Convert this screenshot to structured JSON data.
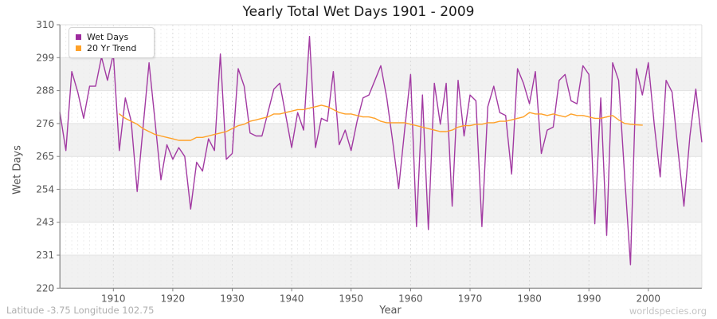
{
  "title": "Yearly Total Wet Days 1901 - 2009",
  "axes": {
    "x_label": "Year",
    "y_label": "Wet Days",
    "x_ticks": [
      1910,
      1920,
      1930,
      1940,
      1950,
      1960,
      1970,
      1980,
      1990,
      2000
    ],
    "y_ticks": [
      310,
      299,
      288,
      276,
      265,
      254,
      243,
      231,
      220
    ]
  },
  "legend": {
    "items": [
      {
        "label": "Wet Days",
        "color": "#9E2B9E"
      },
      {
        "label": "20 Yr Trend",
        "color": "#FFA128"
      }
    ]
  },
  "footer": {
    "left": "Latitude -3.75 Longitude 102.75",
    "right": "worldspecies.org"
  },
  "colors": {
    "wet_days_line": "#A23AA2",
    "trend_line": "#FFA128",
    "band_fill": "#f1f1f1",
    "axis": "#808080",
    "tick_text": "#555555",
    "year_grid": "#ededed",
    "decade_grid": "#d9d9d9"
  },
  "chart_data": {
    "type": "line",
    "title": "Yearly Total Wet Days 1901 - 2009",
    "xlabel": "Year",
    "ylabel": "Wet Days",
    "x_range": [
      1901,
      2009
    ],
    "ylim": [
      220,
      310
    ],
    "grid": "horizontal alternating bands, dashed yearly vertical gridlines",
    "legend_position": "top-left",
    "series": [
      {
        "name": "Wet Days",
        "color": "#A23AA2",
        "x_start": 1901,
        "values": [
          280,
          267,
          294,
          287,
          278,
          289,
          289,
          299,
          291,
          300,
          267,
          285,
          277,
          253,
          275,
          297,
          277,
          257,
          269,
          264,
          268,
          265,
          247,
          263,
          260,
          271,
          267,
          300,
          264,
          266,
          295,
          289,
          273,
          272,
          272,
          280,
          288,
          290,
          279,
          268,
          280,
          274,
          306,
          268,
          278,
          277,
          294,
          269,
          274,
          267,
          277,
          285,
          286,
          291,
          296,
          285,
          270,
          254,
          274,
          293,
          241,
          286,
          240,
          290,
          276,
          290,
          248,
          291,
          272,
          286,
          284,
          241,
          282,
          289,
          280,
          279,
          259,
          295,
          290,
          283,
          294,
          266,
          274,
          275,
          291,
          293,
          284,
          283,
          296,
          293,
          242,
          285,
          238,
          297,
          291,
          259,
          228,
          295,
          286,
          297,
          276,
          258,
          291,
          287,
          267,
          248,
          272,
          288,
          270
        ]
      },
      {
        "name": "20 Yr Trend",
        "color": "#FFA128",
        "x_start": 1911,
        "values": [
          279.5,
          278,
          277,
          276,
          274.5,
          273.5,
          272.5,
          272,
          271.5,
          271,
          270.5,
          270.5,
          270.5,
          271.5,
          271.5,
          272,
          272.5,
          273,
          273.5,
          274.5,
          275.5,
          276,
          277,
          277.5,
          278,
          278.5,
          279.5,
          279.5,
          280,
          280.5,
          281,
          281,
          281.5,
          282,
          282.5,
          282,
          281,
          280,
          279.5,
          279.5,
          279,
          278.5,
          278.5,
          278,
          277,
          276.5,
          276.5,
          276.5,
          276.5,
          276,
          275.5,
          275,
          274.5,
          274,
          273.5,
          273.5,
          274,
          275,
          275.5,
          275.5,
          276,
          276,
          276.5,
          276.5,
          277,
          277,
          277.5,
          278,
          278.5,
          280,
          279.5,
          279.5,
          279,
          279.5,
          279,
          278.5,
          279.5,
          279,
          279,
          278.5,
          278,
          278,
          278.5,
          279,
          277.5,
          276.3,
          276,
          275.8,
          275.7
        ]
      }
    ]
  }
}
